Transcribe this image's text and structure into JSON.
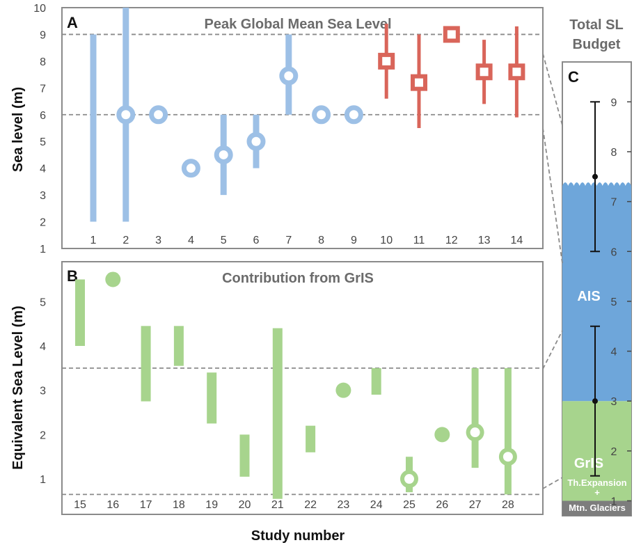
{
  "chart_data": [
    {
      "type": "range",
      "panel": "A",
      "title": "Peak Global Mean Sea Level",
      "ylabel": "Sea level (m)",
      "ylim": [
        1,
        10
      ],
      "yticks": [
        1,
        2,
        3,
        4,
        5,
        6,
        7,
        8,
        9,
        10
      ],
      "reference_lines": [
        6,
        9
      ],
      "colors": {
        "blue": "#9dc0e6",
        "red": "#d9655a"
      },
      "studies": [
        {
          "x": "1",
          "low": 2,
          "high": 9,
          "marker": "none",
          "color": "blue"
        },
        {
          "x": "2",
          "low": 2,
          "high": 10,
          "value": 6,
          "marker": "circle",
          "color": "blue"
        },
        {
          "x": "3",
          "value": 6,
          "marker": "circle",
          "color": "blue"
        },
        {
          "x": "4",
          "value": 4,
          "marker": "circle",
          "color": "blue"
        },
        {
          "x": "5",
          "low": 3,
          "high": 6,
          "value": 4.5,
          "marker": "circle",
          "color": "blue"
        },
        {
          "x": "6",
          "low": 4,
          "high": 6,
          "value": 5,
          "marker": "circle",
          "color": "blue"
        },
        {
          "x": "7",
          "low": 6,
          "high": 9,
          "value": 7.45,
          "marker": "circle",
          "color": "blue"
        },
        {
          "x": "8",
          "value": 6,
          "marker": "circle",
          "color": "blue"
        },
        {
          "x": "9",
          "value": 6,
          "marker": "circle",
          "color": "blue"
        },
        {
          "x": "10",
          "low": 6.6,
          "high": 9.4,
          "value": 8,
          "marker": "square",
          "color": "red"
        },
        {
          "x": "11",
          "low": 5.5,
          "high": 9,
          "value": 7.2,
          "marker": "square",
          "color": "red"
        },
        {
          "x": "12",
          "value": 9,
          "marker": "square",
          "color": "red"
        },
        {
          "x": "13",
          "low": 6.4,
          "high": 8.8,
          "value": 7.6,
          "marker": "square",
          "color": "red"
        },
        {
          "x": "14",
          "low": 5.9,
          "high": 9.3,
          "value": 7.6,
          "marker": "square",
          "color": "red"
        }
      ]
    },
    {
      "type": "range",
      "panel": "B",
      "title": "Contribution from GrIS",
      "ylabel": "Equivalent Sea Level (m)",
      "xlabel": "Study number",
      "ylim": [
        0.2,
        5.9
      ],
      "yticks": [
        1,
        2,
        3,
        4,
        5
      ],
      "reference_lines": [
        0.65,
        3.5
      ],
      "colors": {
        "green": "#a7d48d"
      },
      "studies": [
        {
          "x": "15",
          "low": 4,
          "high": 5.5,
          "marker": "none"
        },
        {
          "x": "16",
          "value": 5.5,
          "marker": "dot"
        },
        {
          "x": "17",
          "low": 2.75,
          "high": 4.45,
          "marker": "none"
        },
        {
          "x": "18",
          "low": 3.55,
          "high": 4.45,
          "marker": "none"
        },
        {
          "x": "19",
          "low": 2.25,
          "high": 3.4,
          "marker": "none"
        },
        {
          "x": "20",
          "low": 1.05,
          "high": 2,
          "marker": "none"
        },
        {
          "x": "21",
          "low": 0.55,
          "high": 4.4,
          "marker": "none"
        },
        {
          "x": "22",
          "low": 1.6,
          "high": 2.2,
          "marker": "none"
        },
        {
          "x": "23",
          "value": 3,
          "marker": "dot"
        },
        {
          "x": "24",
          "low": 2.9,
          "high": 3.5,
          "marker": "none"
        },
        {
          "x": "25",
          "low": 0.7,
          "high": 1.5,
          "value": 1,
          "marker": "circle"
        },
        {
          "x": "26",
          "value": 2,
          "marker": "dot"
        },
        {
          "x": "27",
          "low": 1.25,
          "high": 3.5,
          "value": 2.05,
          "marker": "circle"
        },
        {
          "x": "28",
          "low": 0.65,
          "high": 3.5,
          "value": 1.5,
          "marker": "circle"
        }
      ]
    },
    {
      "type": "stacked-bar",
      "panel": "C",
      "title": "Total SL\nBudget",
      "title_lines": [
        "Total SL",
        "Budget"
      ],
      "ylim": [
        0.7,
        9.8
      ],
      "yticks": [
        1,
        2,
        3,
        4,
        5,
        6,
        7,
        8,
        9
      ],
      "segments": [
        {
          "name": "Th.Expansion\n+\nMtn. Glaciers",
          "label_lines": [
            "Th.Expansion",
            "+",
            "Mtn. Glaciers"
          ],
          "low": 0.7,
          "high": 1.0,
          "color": "#7d7d7d"
        },
        {
          "name": "GrIS",
          "low": 1.0,
          "high": 3.0,
          "color": "#a7d48d"
        },
        {
          "name": "AIS",
          "low": 3.0,
          "high": 7.4,
          "color": "#6ea6da"
        }
      ],
      "error_bars": [
        {
          "center": 3,
          "low": 1.5,
          "high": 4.5
        },
        {
          "center": 7.5,
          "low": 6,
          "high": 9
        }
      ]
    }
  ]
}
